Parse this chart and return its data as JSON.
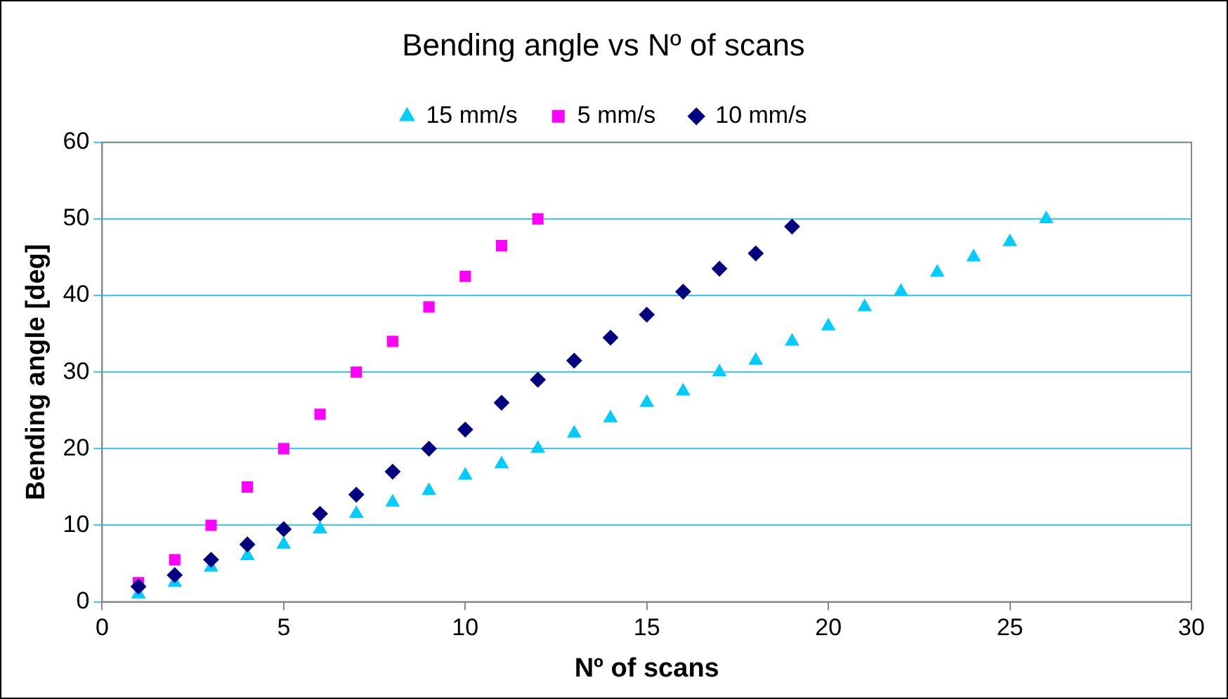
{
  "chart_data": {
    "type": "scatter",
    "title": "Bending angle vs Nº of scans",
    "xlabel": "Nº of scans",
    "ylabel": "Bending angle [deg]",
    "xlim": [
      0,
      30
    ],
    "xticks": [
      0,
      5,
      10,
      15,
      20,
      25,
      30
    ],
    "ylim": [
      0,
      60
    ],
    "yticks": [
      0,
      10,
      20,
      30,
      40,
      50,
      60
    ],
    "grid": "y",
    "legend": "top",
    "series": [
      {
        "name": "15 mm/s",
        "color": "#00ccff",
        "marker": "triangle",
        "x": [
          1,
          2,
          3,
          4,
          5,
          6,
          7,
          8,
          9,
          10,
          11,
          12,
          13,
          14,
          15,
          16,
          17,
          18,
          19,
          20,
          21,
          22,
          23,
          24,
          25,
          26
        ],
        "values": [
          1,
          2.5,
          4.5,
          6,
          7.5,
          9.5,
          11.5,
          13,
          14.5,
          16.5,
          18,
          20,
          22,
          24,
          26,
          27.5,
          30,
          31.5,
          34,
          36,
          38.5,
          40.5,
          43,
          45,
          47,
          50
        ]
      },
      {
        "name": "5 mm/s",
        "color": "#ff00ff",
        "marker": "square",
        "x": [
          1,
          2,
          3,
          4,
          5,
          6,
          7,
          8,
          9,
          10,
          11,
          12
        ],
        "values": [
          2.5,
          5.5,
          10,
          15,
          20,
          24.5,
          30,
          34,
          38.5,
          42.5,
          46.5,
          50
        ]
      },
      {
        "name": "10 mm/s",
        "color": "#000080",
        "marker": "diamond",
        "x": [
          1,
          2,
          3,
          4,
          5,
          6,
          7,
          8,
          9,
          10,
          11,
          12,
          13,
          14,
          15,
          16,
          17,
          18,
          19
        ],
        "values": [
          2,
          3.5,
          5.5,
          7.5,
          9.5,
          11.5,
          14,
          17,
          20,
          22.5,
          26,
          29,
          31.5,
          34.5,
          37.5,
          40.5,
          43.5,
          45.5,
          49
        ]
      }
    ]
  }
}
